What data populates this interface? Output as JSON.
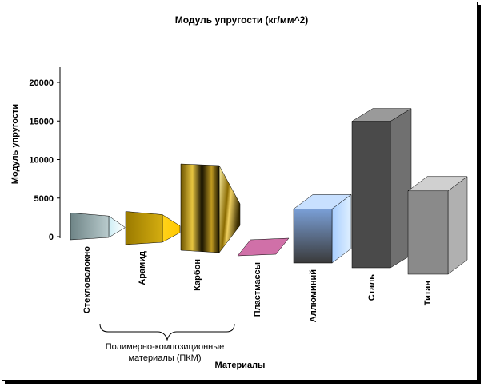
{
  "chart_data": {
    "type": "bar",
    "title": "Модуль упругости (кг/мм^2)",
    "ylabel": "Модуль упругости",
    "xlabel": "Материалы",
    "ylim": [
      0,
      20000
    ],
    "yticks": [
      "0",
      "5000",
      "10000",
      "15000",
      "20000"
    ],
    "categories": [
      "Стекловолокно",
      "Арамид",
      "Карбон",
      "Пластмассы",
      "Аллюминий",
      "Сталь",
      "Титан"
    ],
    "values": [
      3500,
      4300,
      11500,
      200,
      7000,
      19000,
      10800
    ],
    "colors": [
      "#8fa5a8",
      "#c8a000",
      "#2a2000",
      "#d070a8",
      "#7fa0d8",
      "#555555",
      "#888888"
    ],
    "grid": false,
    "legend": "none",
    "annotation": {
      "group_label_line1": "Полимерно-композиционные",
      "group_label_line2": "материалы (ПКМ)"
    }
  }
}
